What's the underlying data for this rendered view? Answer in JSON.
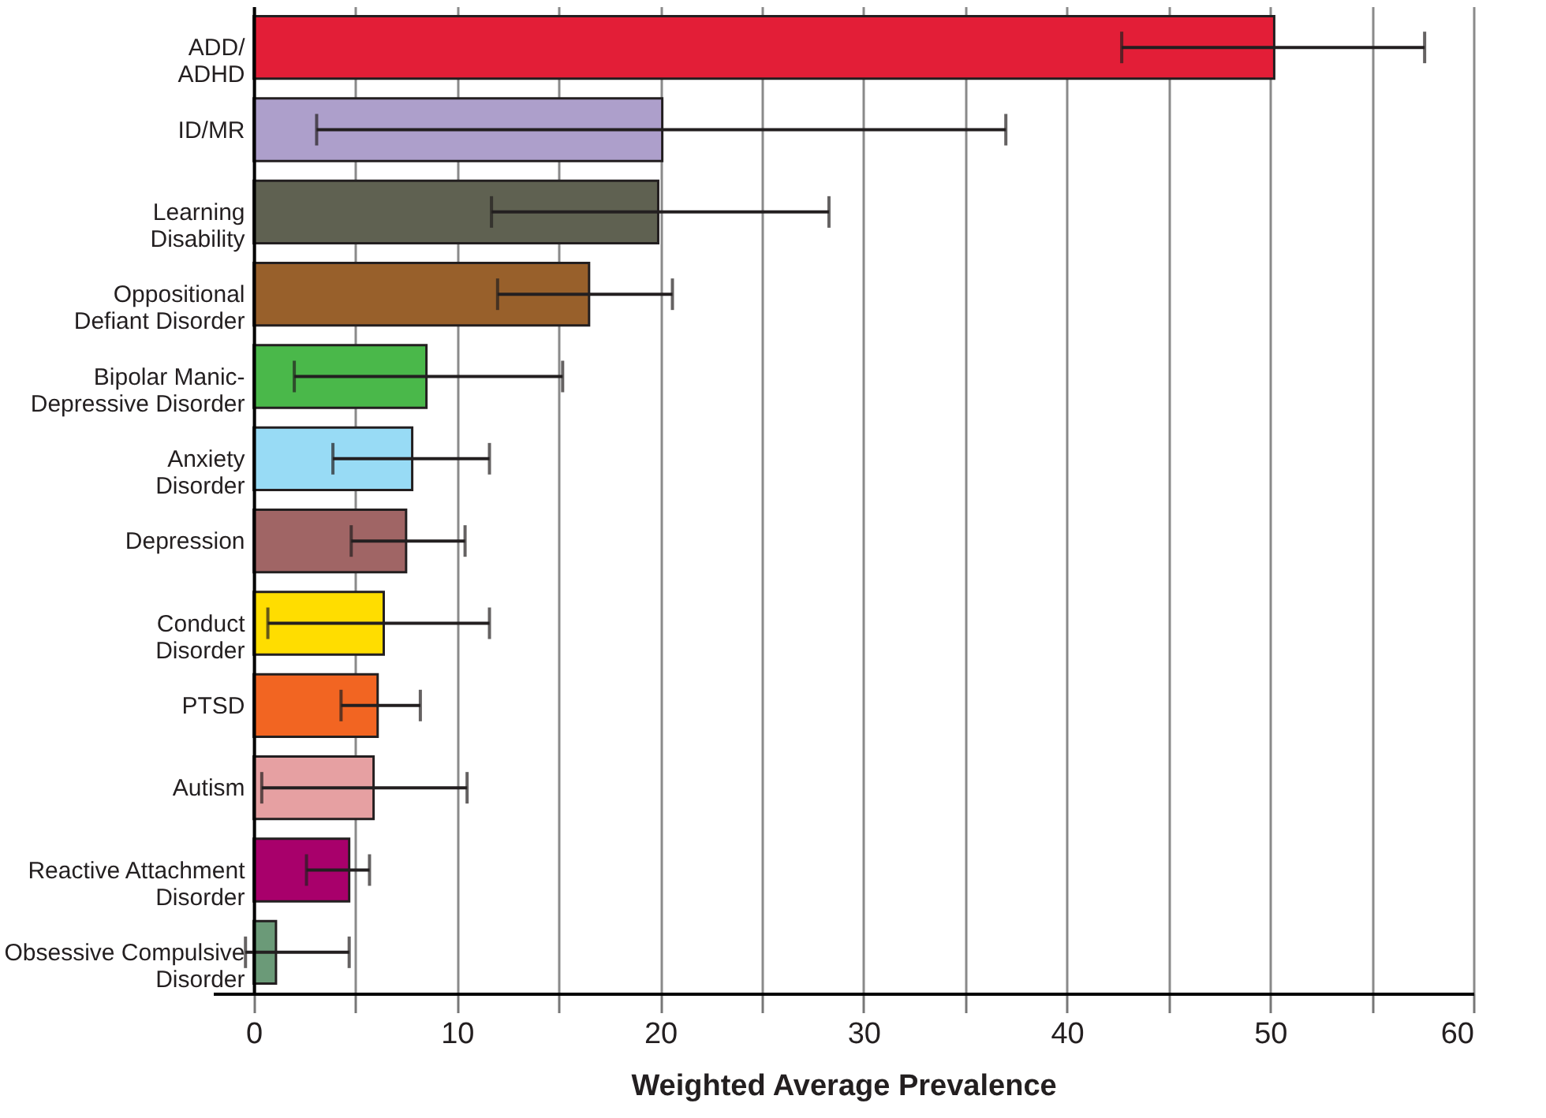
{
  "chart_data": {
    "type": "bar",
    "orientation": "horizontal",
    "xlabel": "Weighted Average Prevalence",
    "categories": [
      "ADD/\nADHD",
      "ID/MR",
      "Learning\nDisability",
      "Oppositional\nDefiant Disorder",
      "Bipolar Manic-\nDepressive Disorder",
      "Anxiety\nDisorder",
      "Depression",
      "Conduct\nDisorder",
      "PTSD",
      "Autism",
      "Reactive Attachment\nDisorder",
      "Obsessive Compulsive\nDisorder"
    ],
    "values": [
      50.2,
      20.1,
      19.9,
      16.5,
      8.5,
      7.8,
      7.5,
      6.4,
      6.1,
      5.9,
      4.7,
      1.1
    ],
    "errors": [
      [
        42.7,
        57.6
      ],
      [
        3.1,
        37.0
      ],
      [
        11.7,
        28.3
      ],
      [
        12.0,
        20.6
      ],
      [
        2.0,
        15.2
      ],
      [
        3.9,
        11.6
      ],
      [
        4.8,
        10.4
      ],
      [
        0.7,
        11.6
      ],
      [
        4.3,
        8.2
      ],
      [
        0.4,
        10.5
      ],
      [
        2.6,
        5.7
      ],
      [
        -0.4,
        4.7
      ]
    ],
    "colors": [
      "#e31e37",
      "#ad9fcb",
      "#5f6151",
      "#98602b",
      "#4ab84a",
      "#98dbf5",
      "#a06565",
      "#ffdd00",
      "#f26522",
      "#e6a0a2",
      "#a8006b",
      "#6b9a78"
    ],
    "xlim": [
      -2,
      60
    ],
    "xticks": [
      0,
      {
        "value": 5,
        "label": null
      },
      10,
      {
        "value": 15,
        "label": null
      },
      20,
      {
        "value": 25,
        "label": null
      },
      30,
      {
        "value": 35,
        "label": null
      },
      40,
      {
        "value": 45,
        "label": null
      },
      50,
      {
        "value": 55,
        "label": null
      },
      60
    ],
    "grid": "x"
  }
}
